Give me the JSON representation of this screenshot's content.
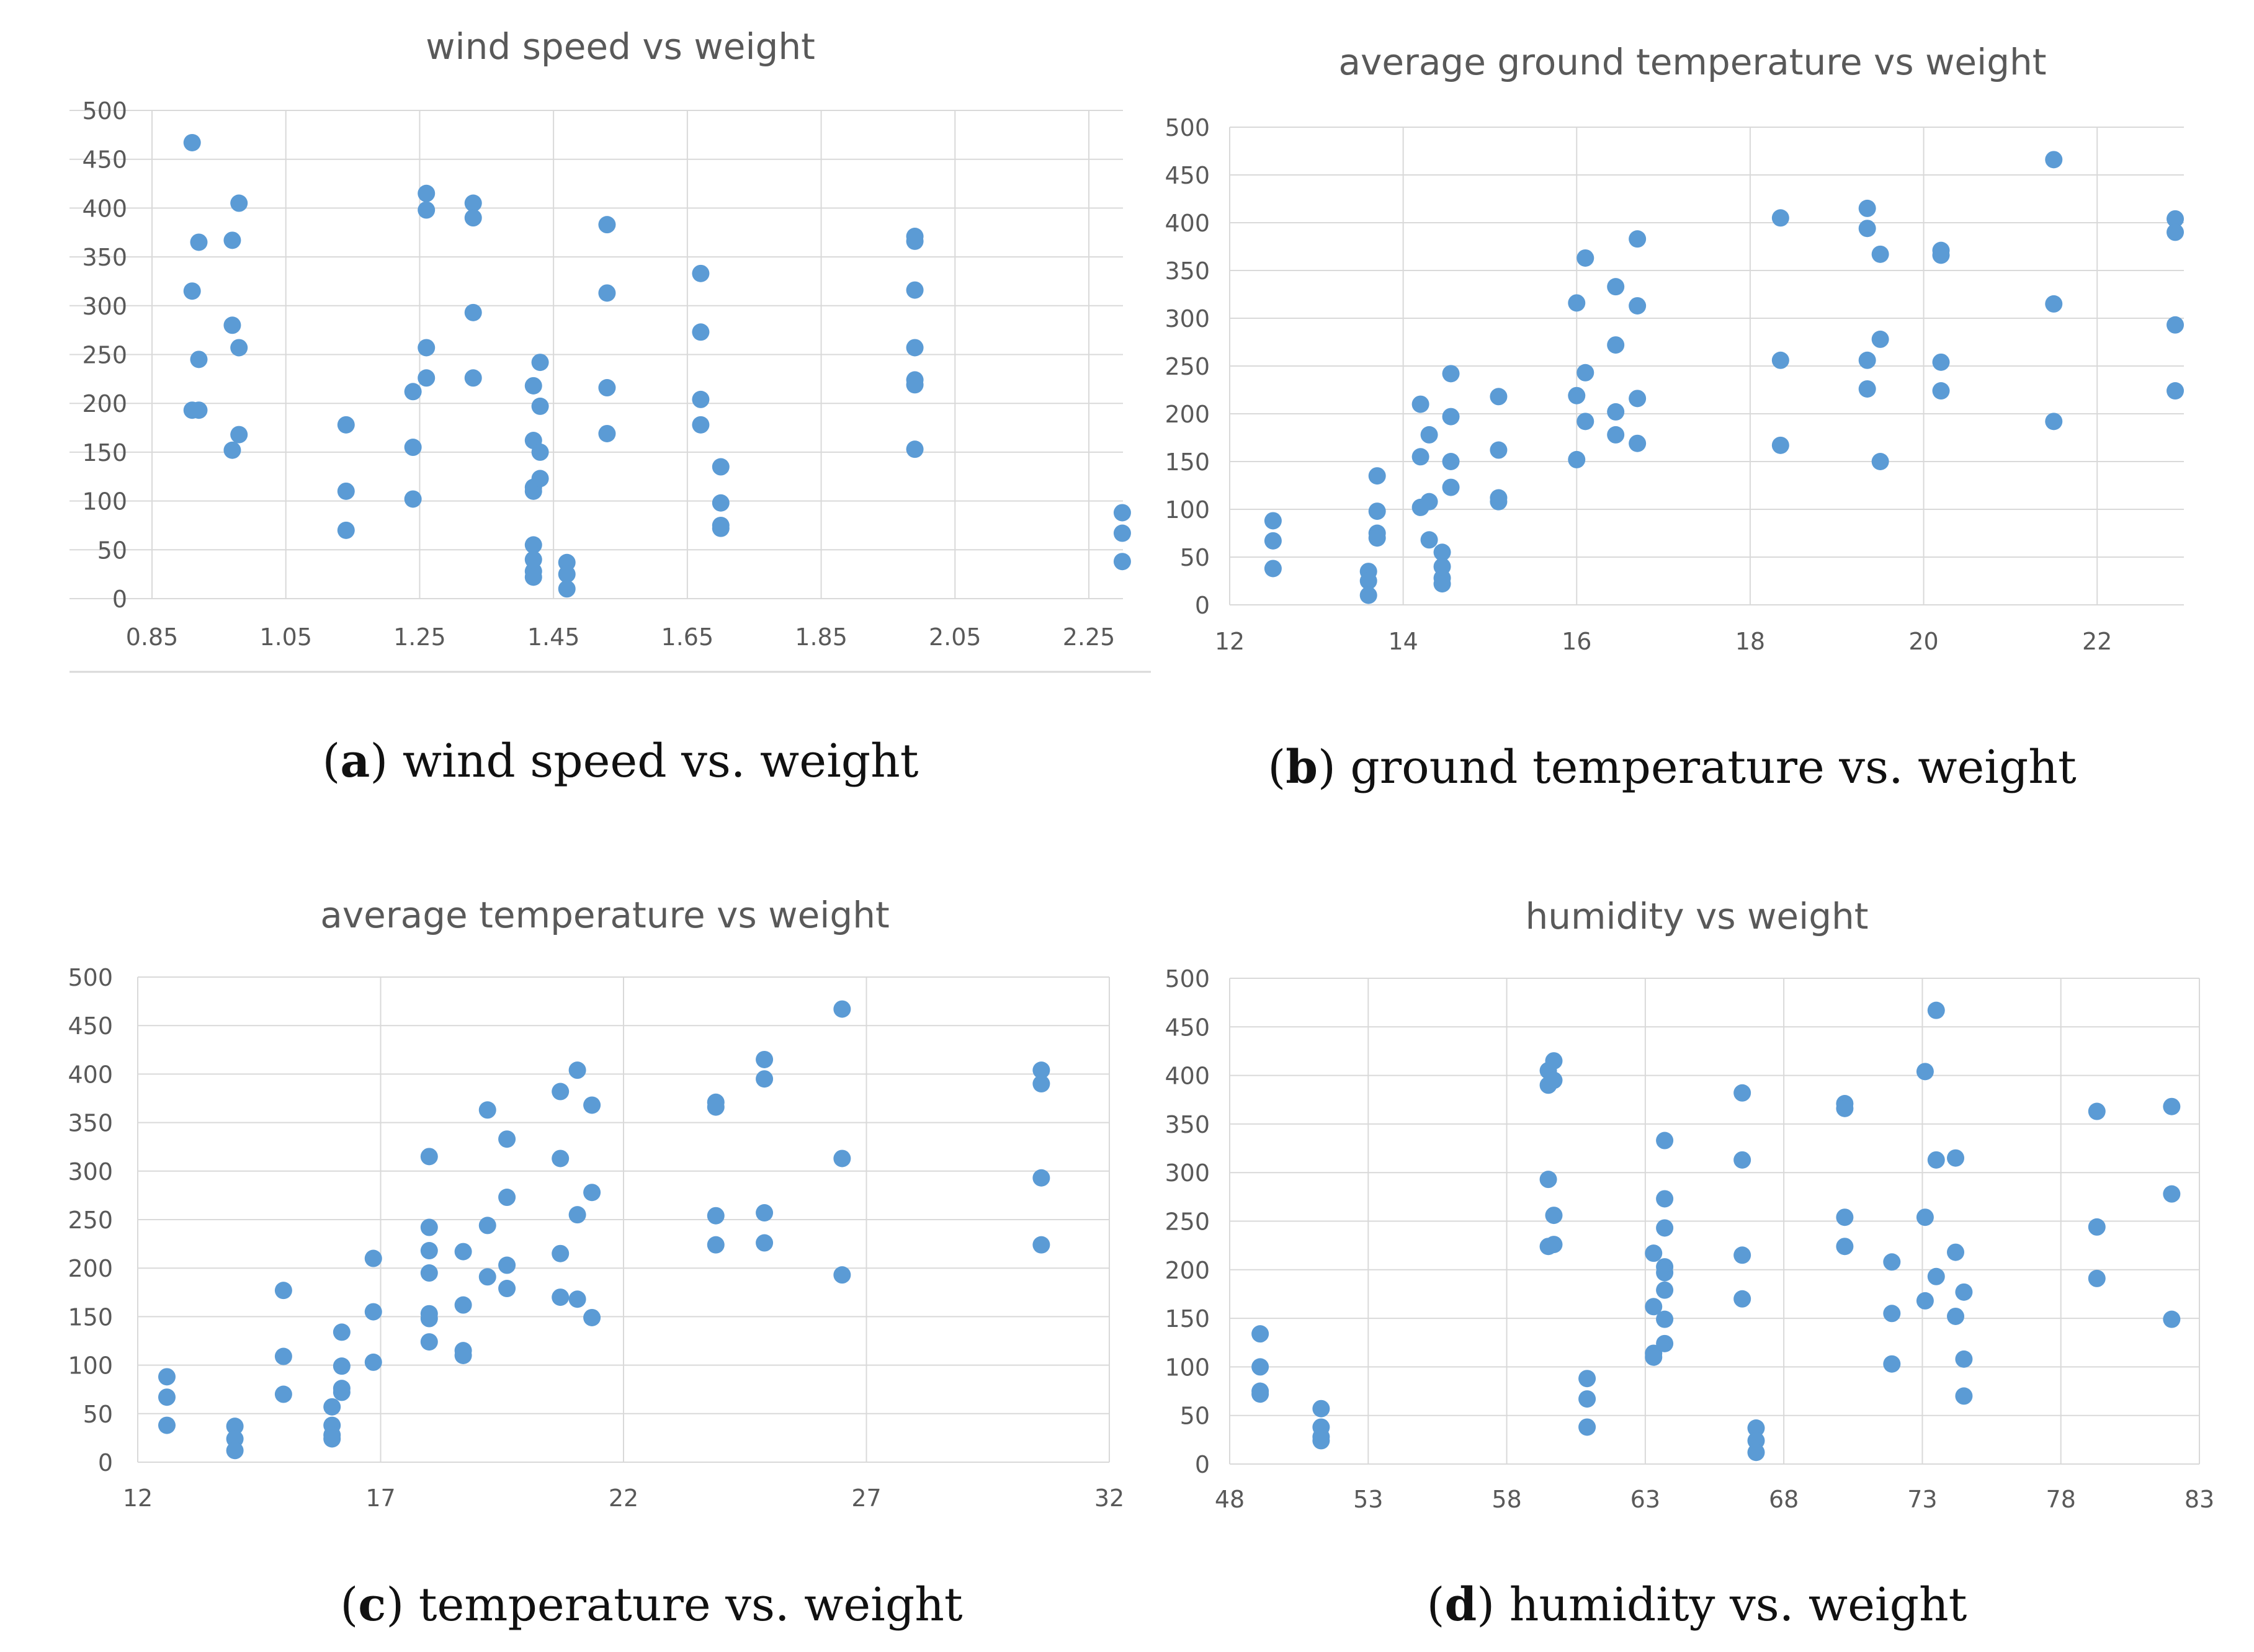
{
  "colors": {
    "point": "#5B9BD5",
    "grid": "#D9D9D9",
    "text": "#595959",
    "caption": "#111111"
  },
  "chart_data": [
    {
      "type": "scatter",
      "title": "wind speed vs weight",
      "caption_letter": "a",
      "caption_text": "wind speed vs. weight",
      "xlabel": "",
      "ylabel": "",
      "xlim": [
        0.85,
        2.3
      ],
      "ylim": [
        0,
        500
      ],
      "xticks": [
        0.85,
        1.05,
        1.25,
        1.45,
        1.65,
        1.85,
        2.05,
        2.25
      ],
      "xtick_labels": [
        "0.85",
        "1.05",
        "1.25",
        "1.45",
        "1.65",
        "1.85",
        "2.05",
        "2.25"
      ],
      "yticks": [
        0,
        50,
        100,
        150,
        200,
        250,
        300,
        350,
        400,
        450,
        500
      ],
      "ytick_labels": [
        "0",
        "50",
        "100",
        "150",
        "200",
        "250",
        "300",
        "350",
        "400",
        "450",
        "500"
      ],
      "points": [
        [
          0.91,
          467
        ],
        [
          0.92,
          365
        ],
        [
          0.91,
          315
        ],
        [
          0.92,
          245
        ],
        [
          0.91,
          193
        ],
        [
          0.92,
          193
        ],
        [
          0.97,
          367
        ],
        [
          0.97,
          280
        ],
        [
          0.97,
          152
        ],
        [
          0.98,
          405
        ],
        [
          0.98,
          257
        ],
        [
          0.98,
          168
        ],
        [
          1.14,
          178
        ],
        [
          1.14,
          110
        ],
        [
          1.14,
          70
        ],
        [
          1.24,
          212
        ],
        [
          1.24,
          155
        ],
        [
          1.24,
          102
        ],
        [
          1.26,
          415
        ],
        [
          1.26,
          398
        ],
        [
          1.26,
          257
        ],
        [
          1.26,
          226
        ],
        [
          1.33,
          405
        ],
        [
          1.33,
          390
        ],
        [
          1.33,
          293
        ],
        [
          1.33,
          226
        ],
        [
          1.42,
          218
        ],
        [
          1.42,
          162
        ],
        [
          1.42,
          114
        ],
        [
          1.42,
          110
        ],
        [
          1.42,
          55
        ],
        [
          1.42,
          40
        ],
        [
          1.42,
          28
        ],
        [
          1.42,
          22
        ],
        [
          1.43,
          242
        ],
        [
          1.43,
          197
        ],
        [
          1.43,
          150
        ],
        [
          1.43,
          123
        ],
        [
          1.47,
          37
        ],
        [
          1.47,
          25
        ],
        [
          1.47,
          10
        ],
        [
          1.53,
          383
        ],
        [
          1.53,
          313
        ],
        [
          1.53,
          216
        ],
        [
          1.53,
          169
        ],
        [
          1.67,
          333
        ],
        [
          1.67,
          273
        ],
        [
          1.67,
          204
        ],
        [
          1.67,
          178
        ],
        [
          1.7,
          135
        ],
        [
          1.7,
          98
        ],
        [
          1.7,
          75
        ],
        [
          1.7,
          72
        ],
        [
          1.99,
          371
        ],
        [
          1.99,
          366
        ],
        [
          1.99,
          316
        ],
        [
          1.99,
          257
        ],
        [
          1.99,
          224
        ],
        [
          1.99,
          219
        ],
        [
          1.99,
          153
        ],
        [
          2.3,
          88
        ],
        [
          2.3,
          67
        ],
        [
          2.3,
          38
        ]
      ]
    },
    {
      "type": "scatter",
      "title": "average ground temperature vs weight",
      "caption_letter": "b",
      "caption_text": "ground temperature vs. weight",
      "xlabel": "",
      "ylabel": "",
      "xlim": [
        12,
        23
      ],
      "ylim": [
        0,
        500
      ],
      "xticks": [
        12,
        14,
        16,
        18,
        20,
        22
      ],
      "xtick_labels": [
        "12",
        "14",
        "16",
        "18",
        "20",
        "22"
      ],
      "yticks": [
        0,
        50,
        100,
        150,
        200,
        250,
        300,
        350,
        400,
        450,
        500
      ],
      "ytick_labels": [
        "0",
        "50",
        "100",
        "150",
        "200",
        "250",
        "300",
        "350",
        "400",
        "450",
        "500"
      ],
      "points": [
        [
          12.5,
          88
        ],
        [
          12.5,
          67
        ],
        [
          12.5,
          38
        ],
        [
          13.6,
          35
        ],
        [
          13.6,
          25
        ],
        [
          13.6,
          10
        ],
        [
          13.7,
          135
        ],
        [
          13.7,
          98
        ],
        [
          13.7,
          75
        ],
        [
          13.7,
          70
        ],
        [
          14.2,
          210
        ],
        [
          14.2,
          155
        ],
        [
          14.2,
          102
        ],
        [
          14.3,
          178
        ],
        [
          14.3,
          108
        ],
        [
          14.3,
          68
        ],
        [
          14.45,
          55
        ],
        [
          14.45,
          40
        ],
        [
          14.45,
          28
        ],
        [
          14.45,
          22
        ],
        [
          14.55,
          242
        ],
        [
          14.55,
          197
        ],
        [
          14.55,
          150
        ],
        [
          14.55,
          123
        ],
        [
          15.1,
          218
        ],
        [
          15.1,
          162
        ],
        [
          15.1,
          112
        ],
        [
          15.1,
          108
        ],
        [
          16.0,
          316
        ],
        [
          16.0,
          219
        ],
        [
          16.0,
          152
        ],
        [
          16.1,
          363
        ],
        [
          16.1,
          243
        ],
        [
          16.1,
          192
        ],
        [
          16.45,
          333
        ],
        [
          16.45,
          272
        ],
        [
          16.45,
          202
        ],
        [
          16.45,
          178
        ],
        [
          16.7,
          383
        ],
        [
          16.7,
          313
        ],
        [
          16.7,
          216
        ],
        [
          16.7,
          169
        ],
        [
          18.35,
          405
        ],
        [
          18.35,
          256
        ],
        [
          18.35,
          167
        ],
        [
          19.35,
          415
        ],
        [
          19.35,
          394
        ],
        [
          19.35,
          256
        ],
        [
          19.35,
          226
        ],
        [
          19.5,
          367
        ],
        [
          19.5,
          278
        ],
        [
          19.5,
          150
        ],
        [
          20.2,
          371
        ],
        [
          20.2,
          366
        ],
        [
          20.2,
          254
        ],
        [
          20.2,
          224
        ],
        [
          21.5,
          466
        ],
        [
          21.5,
          315
        ],
        [
          21.5,
          192
        ],
        [
          22.9,
          404
        ],
        [
          22.9,
          390
        ],
        [
          22.9,
          293
        ],
        [
          22.9,
          224
        ]
      ]
    },
    {
      "type": "scatter",
      "title": "average temperature vs weight",
      "caption_letter": "c",
      "caption_text": "temperature vs. weight",
      "xlabel": "",
      "ylabel": "",
      "xlim": [
        12,
        32
      ],
      "ylim": [
        0,
        500
      ],
      "xticks": [
        12,
        17,
        22,
        27,
        32
      ],
      "xtick_labels": [
        "12",
        "17",
        "22",
        "27",
        "32"
      ],
      "yticks": [
        0,
        50,
        100,
        150,
        200,
        250,
        300,
        350,
        400,
        450,
        500
      ],
      "ytick_labels": [
        "0",
        "50",
        "100",
        "150",
        "200",
        "250",
        "300",
        "350",
        "400",
        "450",
        "500"
      ],
      "points": [
        [
          12.6,
          88
        ],
        [
          12.6,
          67
        ],
        [
          12.6,
          38
        ],
        [
          14.0,
          37
        ],
        [
          14.0,
          24
        ],
        [
          14.0,
          12
        ],
        [
          15.0,
          177
        ],
        [
          15.0,
          109
        ],
        [
          15.0,
          70
        ],
        [
          16.0,
          57
        ],
        [
          16.0,
          38
        ],
        [
          16.0,
          28
        ],
        [
          16.0,
          24
        ],
        [
          16.2,
          134
        ],
        [
          16.2,
          99
        ],
        [
          16.2,
          76
        ],
        [
          16.2,
          72
        ],
        [
          16.85,
          210
        ],
        [
          16.85,
          155
        ],
        [
          16.85,
          103
        ],
        [
          18.0,
          315
        ],
        [
          18.0,
          242
        ],
        [
          18.0,
          218
        ],
        [
          18.0,
          195
        ],
        [
          18.0,
          153
        ],
        [
          18.0,
          148
        ],
        [
          18.0,
          124
        ],
        [
          18.7,
          217
        ],
        [
          18.7,
          162
        ],
        [
          18.7,
          115
        ],
        [
          18.7,
          110
        ],
        [
          19.2,
          363
        ],
        [
          19.2,
          244
        ],
        [
          19.2,
          191
        ],
        [
          19.6,
          333
        ],
        [
          19.6,
          273
        ],
        [
          19.6,
          203
        ],
        [
          19.6,
          179
        ],
        [
          20.7,
          382
        ],
        [
          20.7,
          313
        ],
        [
          20.7,
          215
        ],
        [
          20.7,
          170
        ],
        [
          21.05,
          404
        ],
        [
          21.05,
          255
        ],
        [
          21.05,
          168
        ],
        [
          21.35,
          368
        ],
        [
          21.35,
          278
        ],
        [
          21.35,
          149
        ],
        [
          23.9,
          371
        ],
        [
          23.9,
          366
        ],
        [
          23.9,
          254
        ],
        [
          23.9,
          224
        ],
        [
          24.9,
          415
        ],
        [
          24.9,
          395
        ],
        [
          24.9,
          257
        ],
        [
          24.9,
          226
        ],
        [
          26.5,
          467
        ],
        [
          26.5,
          313
        ],
        [
          26.5,
          193
        ],
        [
          30.6,
          404
        ],
        [
          30.6,
          390
        ],
        [
          30.6,
          293
        ],
        [
          30.6,
          224
        ]
      ]
    },
    {
      "type": "scatter",
      "title": "humidity vs weight",
      "caption_letter": "d",
      "caption_text": "humidity vs. weight",
      "xlabel": "",
      "ylabel": "",
      "xlim": [
        48,
        83
      ],
      "ylim": [
        0,
        500
      ],
      "xticks": [
        48,
        53,
        58,
        63,
        68,
        73,
        78,
        83
      ],
      "xtick_labels": [
        "48",
        "53",
        "58",
        "63",
        "68",
        "73",
        "78",
        "83"
      ],
      "yticks": [
        0,
        50,
        100,
        150,
        200,
        250,
        300,
        350,
        400,
        450,
        500
      ],
      "ytick_labels": [
        "0",
        "50",
        "100",
        "150",
        "200",
        "250",
        "300",
        "350",
        "400",
        "450",
        "500"
      ],
      "points": [
        [
          49.1,
          134
        ],
        [
          49.1,
          100
        ],
        [
          49.1,
          75
        ],
        [
          49.1,
          72
        ],
        [
          51.3,
          57
        ],
        [
          51.3,
          38
        ],
        [
          51.3,
          28
        ],
        [
          51.3,
          24
        ],
        [
          59.5,
          405
        ],
        [
          59.5,
          390
        ],
        [
          59.5,
          293
        ],
        [
          59.5,
          224
        ],
        [
          59.7,
          415
        ],
        [
          59.7,
          395
        ],
        [
          59.7,
          256
        ],
        [
          59.7,
          226
        ],
        [
          60.9,
          88
        ],
        [
          60.9,
          67
        ],
        [
          60.9,
          38
        ],
        [
          63.3,
          217
        ],
        [
          63.3,
          162
        ],
        [
          63.3,
          114
        ],
        [
          63.3,
          110
        ],
        [
          63.7,
          333
        ],
        [
          63.7,
          273
        ],
        [
          63.7,
          243
        ],
        [
          63.7,
          203
        ],
        [
          63.7,
          197
        ],
        [
          63.7,
          179
        ],
        [
          63.7,
          149
        ],
        [
          63.7,
          124
        ],
        [
          66.5,
          382
        ],
        [
          66.5,
          313
        ],
        [
          66.5,
          215
        ],
        [
          66.5,
          170
        ],
        [
          67.0,
          37
        ],
        [
          67.0,
          24
        ],
        [
          67.0,
          12
        ],
        [
          70.2,
          371
        ],
        [
          70.2,
          366
        ],
        [
          70.2,
          254
        ],
        [
          70.2,
          224
        ],
        [
          71.9,
          208
        ],
        [
          71.9,
          155
        ],
        [
          71.9,
          103
        ],
        [
          73.1,
          404
        ],
        [
          73.1,
          254
        ],
        [
          73.1,
          168
        ],
        [
          73.5,
          467
        ],
        [
          73.5,
          313
        ],
        [
          73.5,
          193
        ],
        [
          74.2,
          315
        ],
        [
          74.2,
          218
        ],
        [
          74.2,
          152
        ],
        [
          74.5,
          177
        ],
        [
          74.5,
          108
        ],
        [
          74.5,
          70
        ],
        [
          79.3,
          363
        ],
        [
          79.3,
          244
        ],
        [
          79.3,
          191
        ],
        [
          82.0,
          368
        ],
        [
          82.0,
          278
        ],
        [
          82.0,
          149
        ]
      ]
    }
  ]
}
